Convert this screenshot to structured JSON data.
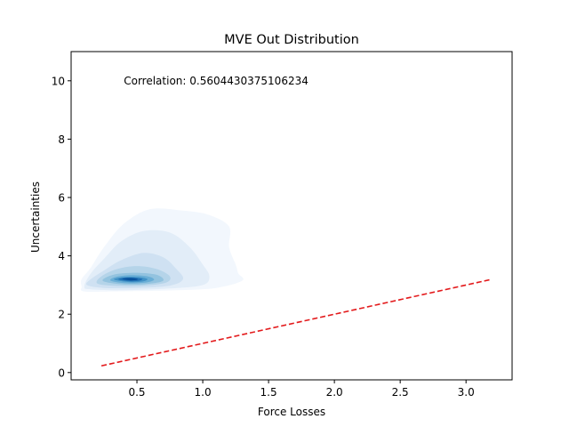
{
  "chart_data": {
    "type": "kde-contour",
    "title": "MVE Out Distribution",
    "xlabel": "Force Losses",
    "ylabel": "Uncertainties",
    "xlim": [
      0.0,
      3.35
    ],
    "ylim": [
      -0.25,
      11.0
    ],
    "xticks": [
      0.5,
      1.0,
      1.5,
      2.0,
      2.5,
      3.0
    ],
    "xtick_labels": [
      "0.5",
      "1.0",
      "1.5",
      "2.0",
      "2.5",
      "3.0"
    ],
    "yticks": [
      0,
      2,
      4,
      6,
      8,
      10
    ],
    "ytick_labels": [
      "0",
      "2",
      "4",
      "6",
      "8",
      "10"
    ],
    "grid": false,
    "annotation": {
      "text": "Correlation: 0.5604430375106234",
      "x": 0.4,
      "y": 10.0
    },
    "reference_line": {
      "style": "dashed",
      "color": "#e31a1c",
      "x": [
        0.23,
        3.18
      ],
      "y": [
        0.23,
        3.18
      ]
    },
    "density_peak": {
      "x": 0.45,
      "y": 3.2
    },
    "contour_colormap": "Blues",
    "contour_levels": [
      {
        "level": 1,
        "color": "#f2f7fd",
        "points": [
          [
            0.08,
            2.95
          ],
          [
            0.1,
            2.78
          ],
          [
            0.35,
            2.78
          ],
          [
            0.8,
            2.82
          ],
          [
            1.1,
            2.9
          ],
          [
            1.3,
            3.15
          ],
          [
            1.27,
            3.4
          ],
          [
            1.25,
            3.7
          ],
          [
            1.2,
            4.3
          ],
          [
            1.2,
            5.0
          ],
          [
            1.05,
            5.4
          ],
          [
            0.85,
            5.55
          ],
          [
            0.6,
            5.6
          ],
          [
            0.4,
            5.1
          ],
          [
            0.25,
            4.3
          ],
          [
            0.15,
            3.6
          ],
          [
            0.08,
            3.2
          ]
        ]
      },
      {
        "level": 2,
        "color": "#e2edf8",
        "points": [
          [
            0.1,
            2.95
          ],
          [
            0.15,
            2.85
          ],
          [
            0.4,
            2.82
          ],
          [
            0.75,
            2.88
          ],
          [
            1.0,
            3.0
          ],
          [
            1.05,
            3.3
          ],
          [
            1.0,
            3.7
          ],
          [
            0.9,
            4.3
          ],
          [
            0.75,
            4.8
          ],
          [
            0.55,
            4.85
          ],
          [
            0.38,
            4.5
          ],
          [
            0.25,
            3.9
          ],
          [
            0.15,
            3.4
          ]
        ]
      },
      {
        "level": 3,
        "color": "#cfe1f2",
        "points": [
          [
            0.12,
            3.0
          ],
          [
            0.25,
            2.9
          ],
          [
            0.5,
            2.9
          ],
          [
            0.75,
            2.98
          ],
          [
            0.85,
            3.2
          ],
          [
            0.8,
            3.55
          ],
          [
            0.7,
            3.95
          ],
          [
            0.55,
            4.1
          ],
          [
            0.38,
            3.85
          ],
          [
            0.25,
            3.5
          ],
          [
            0.15,
            3.2
          ]
        ]
      },
      {
        "level": 4,
        "color": "#b5d4e9",
        "points": [
          [
            0.2,
            3.05
          ],
          [
            0.35,
            2.97
          ],
          [
            0.55,
            2.98
          ],
          [
            0.72,
            3.08
          ],
          [
            0.75,
            3.3
          ],
          [
            0.65,
            3.55
          ],
          [
            0.5,
            3.65
          ],
          [
            0.35,
            3.55
          ],
          [
            0.23,
            3.3
          ]
        ]
      },
      {
        "level": 5,
        "color": "#93c3df",
        "points": [
          [
            0.25,
            3.12
          ],
          [
            0.4,
            3.02
          ],
          [
            0.58,
            3.04
          ],
          [
            0.7,
            3.15
          ],
          [
            0.65,
            3.35
          ],
          [
            0.5,
            3.42
          ],
          [
            0.35,
            3.38
          ],
          [
            0.26,
            3.25
          ]
        ]
      },
      {
        "level": 6,
        "color": "#6aaed6",
        "points": [
          [
            0.3,
            3.15
          ],
          [
            0.42,
            3.06
          ],
          [
            0.56,
            3.08
          ],
          [
            0.63,
            3.18
          ],
          [
            0.58,
            3.3
          ],
          [
            0.45,
            3.34
          ],
          [
            0.34,
            3.28
          ]
        ]
      },
      {
        "level": 7,
        "color": "#4292c6",
        "points": [
          [
            0.33,
            3.18
          ],
          [
            0.44,
            3.1
          ],
          [
            0.54,
            3.12
          ],
          [
            0.58,
            3.2
          ],
          [
            0.52,
            3.27
          ],
          [
            0.42,
            3.28
          ],
          [
            0.35,
            3.24
          ]
        ]
      },
      {
        "level": 8,
        "color": "#2171b5",
        "points": [
          [
            0.36,
            3.19
          ],
          [
            0.45,
            3.13
          ],
          [
            0.52,
            3.15
          ],
          [
            0.54,
            3.21
          ],
          [
            0.48,
            3.25
          ],
          [
            0.4,
            3.25
          ]
        ]
      },
      {
        "level": 9,
        "color": "#08519c",
        "points": [
          [
            0.39,
            3.2
          ],
          [
            0.45,
            3.16
          ],
          [
            0.5,
            3.18
          ],
          [
            0.5,
            3.22
          ],
          [
            0.45,
            3.24
          ],
          [
            0.41,
            3.23
          ]
        ]
      }
    ]
  }
}
